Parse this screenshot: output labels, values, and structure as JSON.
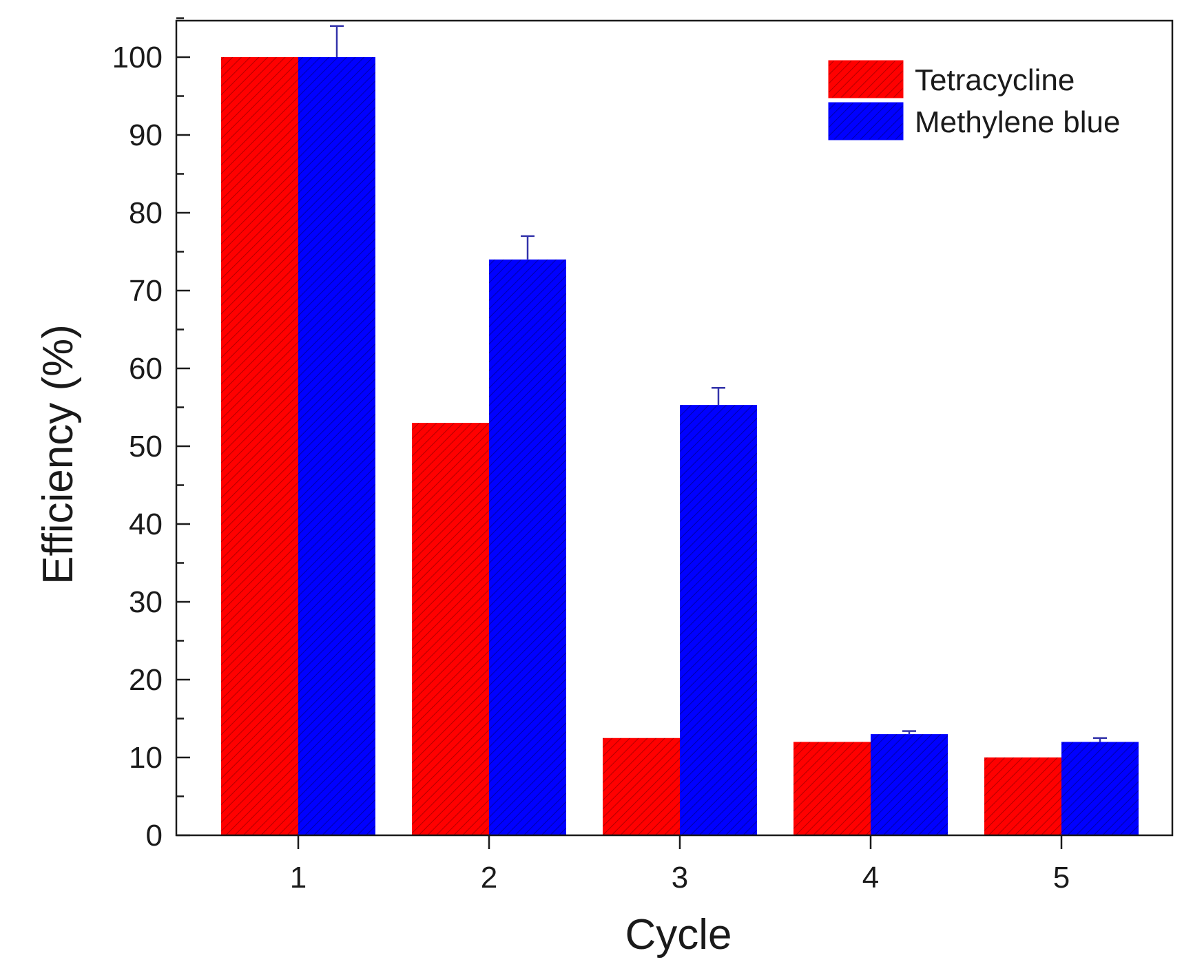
{
  "chart_data": {
    "type": "bar",
    "title": "",
    "xlabel": "Cycle",
    "ylabel": "Efficiency (%)",
    "categories": [
      "1",
      "2",
      "3",
      "4",
      "5"
    ],
    "ylim": [
      0,
      105
    ],
    "yticks": [
      0,
      10,
      20,
      30,
      40,
      50,
      60,
      70,
      80,
      90,
      100
    ],
    "yticks_minor_step": 5,
    "legend_position": "top-right",
    "series": [
      {
        "name": "Tetracycline",
        "color": "#ff0000",
        "hatch_color": "#b30000",
        "values": [
          100,
          53,
          12.5,
          12,
          10
        ],
        "errors": [
          0,
          0,
          0,
          0,
          0
        ]
      },
      {
        "name": "Methylene blue",
        "color": "#0000ff",
        "hatch_color": "#0000a8",
        "values": [
          100,
          74,
          55.3,
          13,
          12
        ],
        "errors": [
          4,
          3,
          2.2,
          0.4,
          0.5
        ]
      }
    ]
  }
}
